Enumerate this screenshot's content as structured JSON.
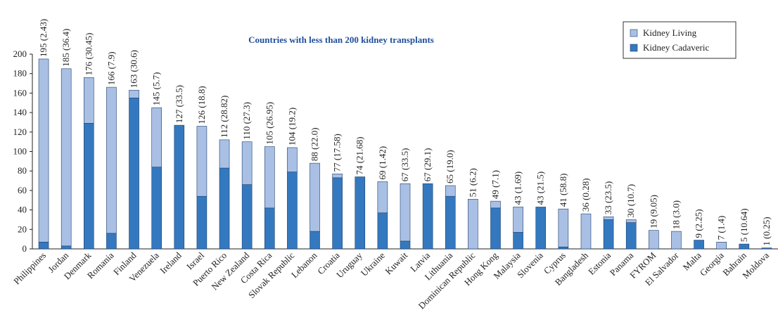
{
  "chart_data": {
    "type": "stacked_bar",
    "title": "Countries with less than 200 kidney transplants",
    "categories": [
      "Philippines",
      "Jordan",
      "Denmark",
      "Romania",
      "Finland",
      "Venezuela",
      "Ireland",
      "Israel",
      "Puerto Rico",
      "New Zealand",
      "Costa Rica",
      "Slovak Republic",
      "Lebanon",
      "Croatia",
      "Uruguay",
      "Ukraine",
      "Kuwait",
      "Latvia",
      "Lithuania",
      "Dominican Republic",
      "Hong Kong",
      "Malaysia",
      "Slovenia",
      "Cyprus",
      "Bangladesh",
      "Estonia",
      "Panama",
      "FYROM",
      "El Salvador",
      "Malta",
      "Georgia",
      "Bahrain",
      "Moldova"
    ],
    "series": [
      {
        "name": "Kidney Living",
        "color": "#a9c0e4",
        "values": [
          188,
          182,
          47,
          150,
          8,
          61,
          0,
          72,
          29,
          44,
          63,
          25,
          70,
          4,
          0,
          32,
          59,
          0,
          11,
          51,
          7,
          26,
          0,
          39,
          36,
          3,
          3,
          19,
          18,
          0,
          7,
          0,
          0
        ]
      },
      {
        "name": "Kidney Cadaveric",
        "color": "#3479bf",
        "values": [
          7,
          3,
          129,
          16,
          155,
          84,
          127,
          54,
          83,
          66,
          42,
          79,
          18,
          73,
          74,
          37,
          8,
          67,
          54,
          0,
          42,
          17,
          43,
          2,
          0,
          30,
          27,
          0,
          0,
          9,
          0,
          5,
          1
        ]
      }
    ],
    "labels": [
      "195 (2.43)",
      "185 (36.4)",
      "176 (30.45)",
      "166 (7.9)",
      "163 (30.6)",
      "145 (5.7)",
      "127 (33.5)",
      "126 (18.8)",
      "112 (28.82)",
      "110 (27.3)",
      "105 (26.95)",
      "104 (19.2)",
      "88 (22.0)",
      "77 (17.58)",
      "74 (21.68)",
      "69 (1.42)",
      "67 (33.5)",
      "67 (29.1)",
      "65 (19.0)",
      "51 (6.2)",
      "49 (7.1)",
      "43 (1.69)",
      "43 (21.5)",
      "41 (58.8)",
      "36 (0.28)",
      "33 (23.5)",
      "30 (10.7)",
      "19 (9.05)",
      "18 (3.0)",
      "9 (2.25)",
      "7 (1.4)",
      "5 (10.64)",
      "1 (0.25)"
    ],
    "ylim": [
      0,
      200
    ],
    "yticks": [
      0,
      20,
      40,
      60,
      80,
      100,
      120,
      140,
      160,
      180,
      200
    ],
    "legend": "top-right"
  }
}
